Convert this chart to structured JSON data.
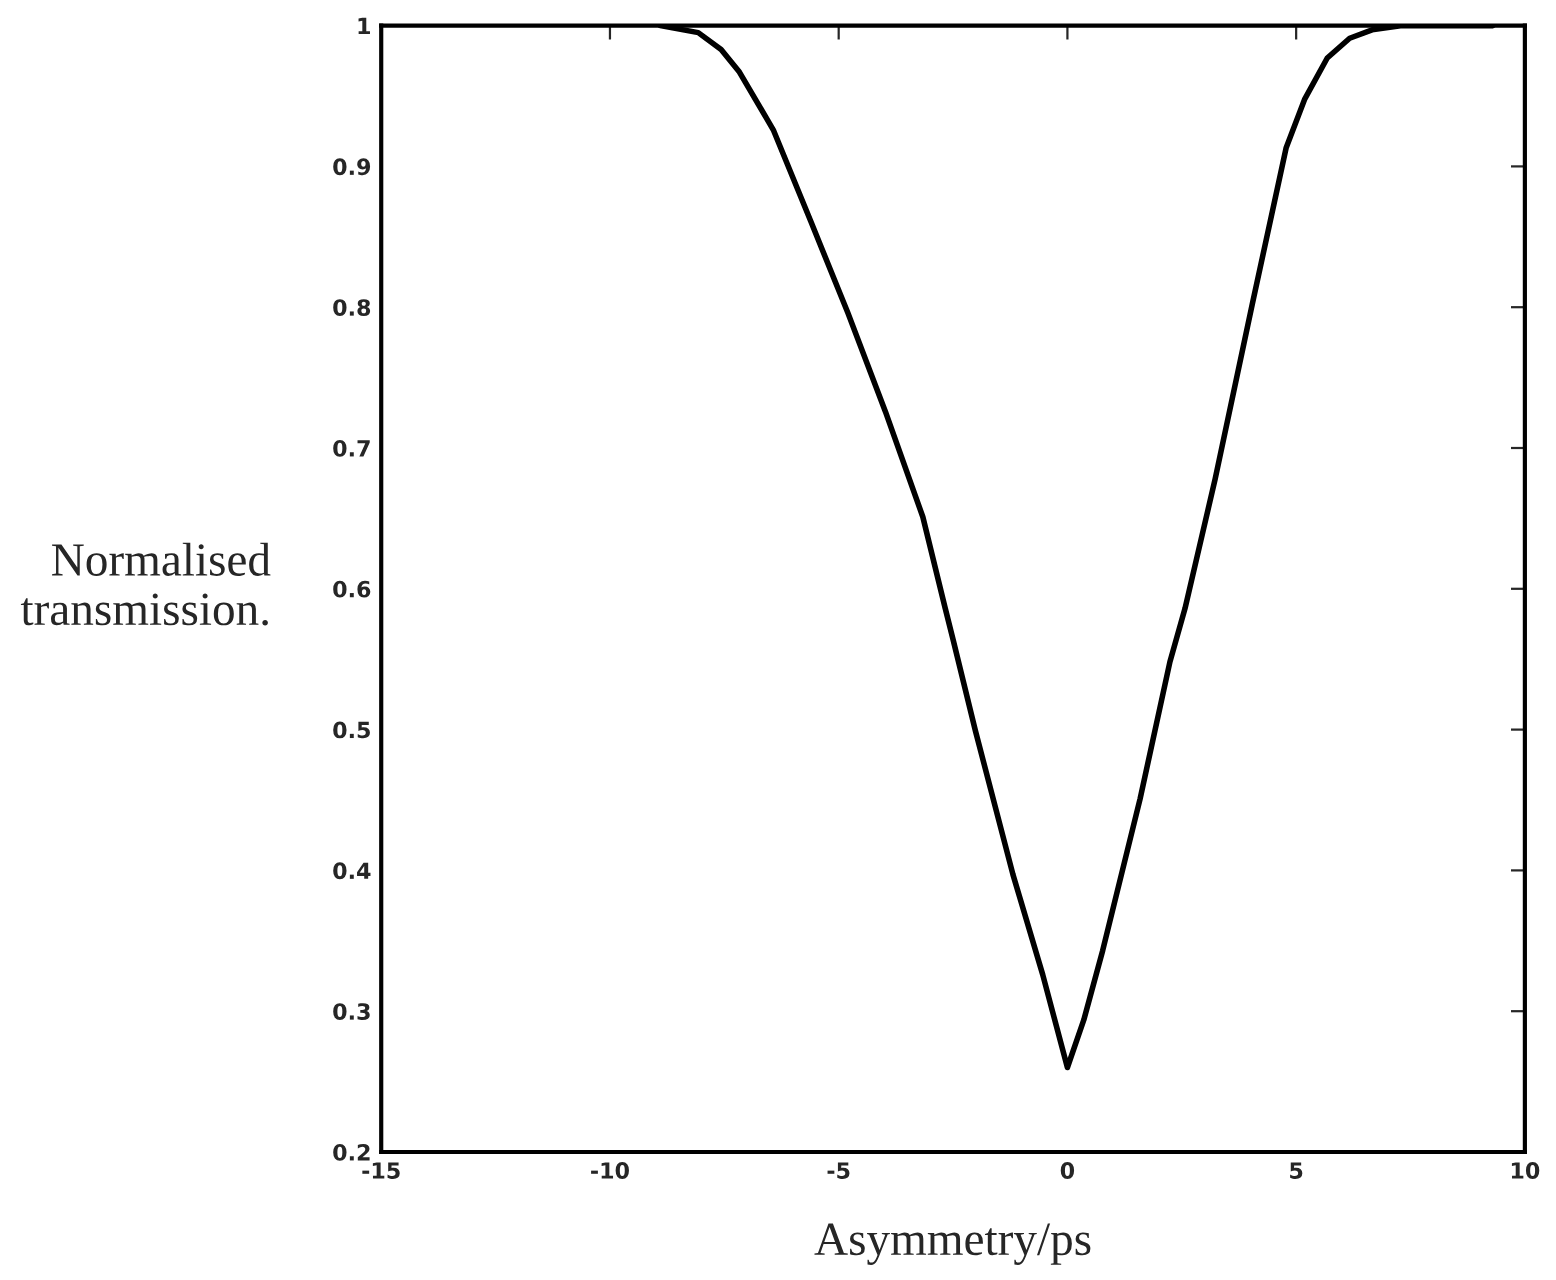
{
  "chart_data": {
    "type": "line",
    "xlabel": "Asymmetry/ps",
    "ylabel": "Normalised\ntransmission.",
    "xlim": [
      -15,
      10
    ],
    "ylim": [
      0.2,
      1
    ],
    "xticks": [
      -15,
      -10,
      -5,
      0,
      5,
      10
    ],
    "yticks": [
      0.2,
      0.3,
      0.4,
      0.5,
      0.6,
      0.7,
      0.8,
      0.9,
      1
    ],
    "grid": false,
    "marker": "none",
    "line_style": "solid",
    "series": [
      {
        "color": "#000000",
        "x": [
          -8.9,
          -8.07,
          -7.57,
          -7.17,
          -6.43,
          -5.61,
          -4.8,
          -3.98,
          -3.16,
          -2.67,
          -2.5,
          -2.01,
          -1.19,
          -0.54,
          0,
          0.36,
          0.77,
          1.59,
          2.24,
          2.57,
          3.23,
          4.04,
          4.78,
          5.19,
          5.68,
          6.17,
          6.66,
          7.32,
          9.3
        ],
        "values": [
          1.0,
          0.995,
          0.983,
          0.967,
          0.926,
          0.861,
          0.796,
          0.726,
          0.651,
          0.586,
          0.564,
          0.499,
          0.397,
          0.326,
          0.26,
          0.294,
          0.343,
          0.451,
          0.548,
          0.586,
          0.678,
          0.802,
          0.913,
          0.948,
          0.977,
          0.991,
          0.997,
          1.0,
          1.0
        ]
      }
    ]
  }
}
